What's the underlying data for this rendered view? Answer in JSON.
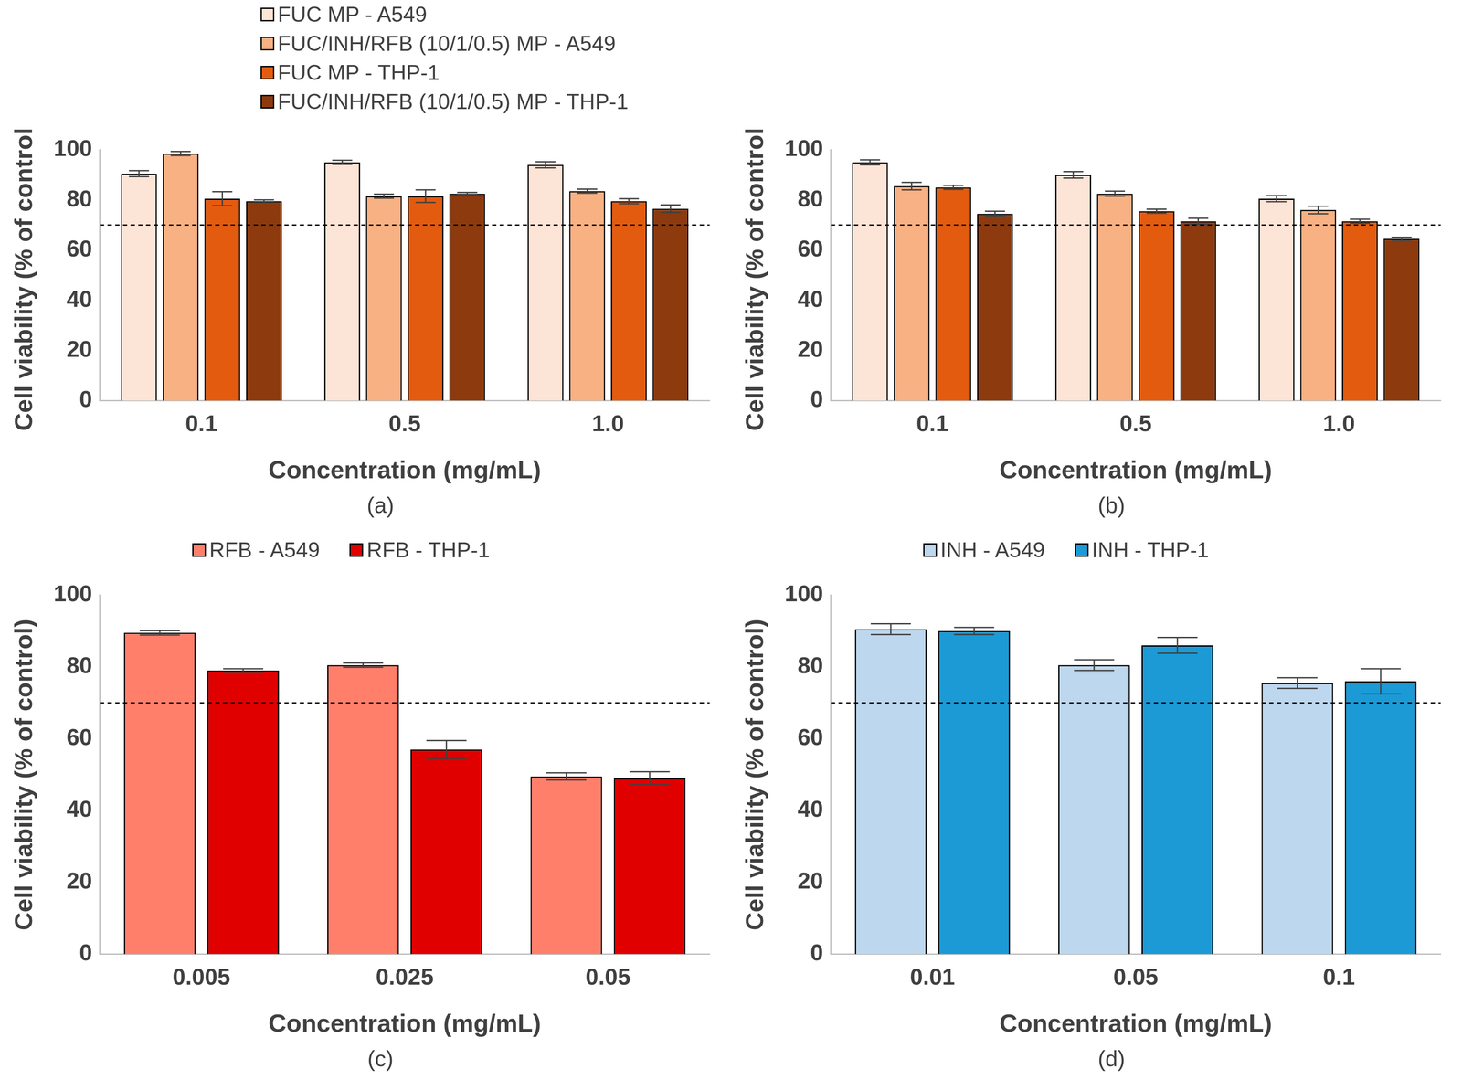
{
  "chart_data": [
    {
      "type": "bar",
      "panel": "(a)",
      "x_label": "Concentration (mg/mL)",
      "y_label": "Cell viability (% of control)",
      "categories": [
        "0.1",
        "0.5",
        "1.0"
      ],
      "series": [
        {
          "name": "FUC MP - A549",
          "color": "#fce4d6",
          "values": [
            90.5,
            95,
            94
          ],
          "errors": [
            1.2,
            0.8,
            1.2
          ]
        },
        {
          "name": "FUC/INH/RFB (10/1/0.5) MP - A549",
          "color": "#f8b183",
          "values": [
            98.5,
            81.5,
            83.5
          ],
          "errors": [
            0.8,
            0.8,
            0.8
          ]
        },
        {
          "name": "FUC MP - THP-1",
          "color": "#e35b0f",
          "values": [
            80.5,
            81.5,
            79.5
          ],
          "errors": [
            2.8,
            2.5,
            1.0
          ]
        },
        {
          "name": "FUC/INH/RFB (10/1/0.5) MP - THP-1",
          "color": "#8c3a0e",
          "values": [
            79.5,
            82.5,
            76.5
          ],
          "errors": [
            0.5,
            0.5,
            1.5
          ]
        }
      ],
      "threshold": 70,
      "ylim": [
        0,
        100
      ],
      "yticks": [
        0,
        20,
        40,
        60,
        80,
        100
      ],
      "grid": false,
      "legend": "top"
    },
    {
      "type": "bar",
      "panel": "(b)",
      "x_label": "Concentration (mg/mL)",
      "y_label": "Cell viability (% of control)",
      "categories": [
        "0.1",
        "0.5",
        "1.0"
      ],
      "series": [
        {
          "color": "#fce4d6",
          "values": [
            95,
            90,
            80.5
          ],
          "errors": [
            1.0,
            1.3,
            1.2
          ]
        },
        {
          "color": "#f8b183",
          "values": [
            85.5,
            82.5,
            76
          ],
          "errors": [
            1.5,
            1.0,
            1.5
          ]
        },
        {
          "color": "#e35b0f",
          "values": [
            85,
            75.5,
            71.5
          ],
          "errors": [
            0.8,
            0.8,
            0.8
          ]
        },
        {
          "color": "#8c3a0e",
          "values": [
            74.5,
            71.5,
            64.5
          ],
          "errors": [
            1.0,
            1.2,
            0.6
          ]
        }
      ],
      "threshold": 70,
      "ylim": [
        0,
        100
      ],
      "yticks": [
        0,
        20,
        40,
        60,
        80,
        100
      ],
      "grid": false
    },
    {
      "type": "bar",
      "panel": "(c)",
      "x_label": "Concentration (mg/mL)",
      "y_label": "Cell viability (% of control)",
      "categories": [
        "0.005",
        "0.025",
        "0.05"
      ],
      "series": [
        {
          "name": "RFB - A549",
          "color": "#ff7f6b",
          "values": [
            89.5,
            80.5,
            49.5
          ],
          "errors": [
            0.6,
            0.6,
            1.0
          ]
        },
        {
          "name": "RFB - THP-1",
          "color": "#e00000",
          "values": [
            79,
            57,
            49
          ],
          "errors": [
            0.5,
            2.5,
            1.8
          ]
        }
      ],
      "threshold": 70,
      "ylim": [
        0,
        100
      ],
      "yticks": [
        0,
        20,
        40,
        60,
        80,
        100
      ],
      "grid": false,
      "legend": "top"
    },
    {
      "type": "bar",
      "panel": "(d)",
      "x_label": "Concentration (mg/mL)",
      "y_label": "Cell viability (% of control)",
      "categories": [
        "0.01",
        "0.05",
        "0.1"
      ],
      "series": [
        {
          "name": "INH - A549",
          "color": "#bdd7ee",
          "values": [
            90.5,
            80.5,
            75.5
          ],
          "errors": [
            1.5,
            1.5,
            1.5
          ]
        },
        {
          "name": "INH - THP-1",
          "color": "#1b9ad6",
          "values": [
            90,
            86,
            76
          ],
          "errors": [
            1.0,
            2.2,
            3.5
          ]
        }
      ],
      "threshold": 70,
      "ylim": [
        0,
        100
      ],
      "yticks": [
        0,
        20,
        40,
        60,
        80,
        100
      ],
      "grid": false,
      "legend": "top"
    }
  ]
}
